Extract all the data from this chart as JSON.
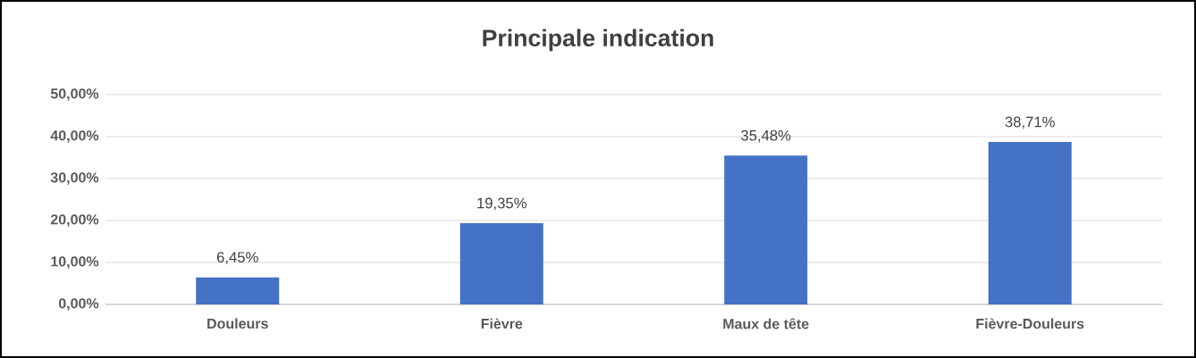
{
  "chart_data": {
    "type": "bar",
    "title": "Principale indication",
    "categories": [
      "Douleurs",
      "Fièvre",
      "Maux de tête",
      "Fièvre-Douleurs"
    ],
    "values": [
      6.45,
      19.35,
      35.48,
      38.71
    ],
    "value_labels": [
      "6,45%",
      "19,35%",
      "35,48%",
      "38,71%"
    ],
    "color": "#4472c4",
    "ylim": [
      0,
      50
    ],
    "yticks": [
      {
        "value": 0,
        "label": "0,00%"
      },
      {
        "value": 10,
        "label": "10,00%"
      },
      {
        "value": 20,
        "label": "20,00%"
      },
      {
        "value": 30,
        "label": "30,00%"
      },
      {
        "value": 40,
        "label": "40,00%"
      },
      {
        "value": 50,
        "label": "50,00%"
      }
    ],
    "grid": "y"
  }
}
